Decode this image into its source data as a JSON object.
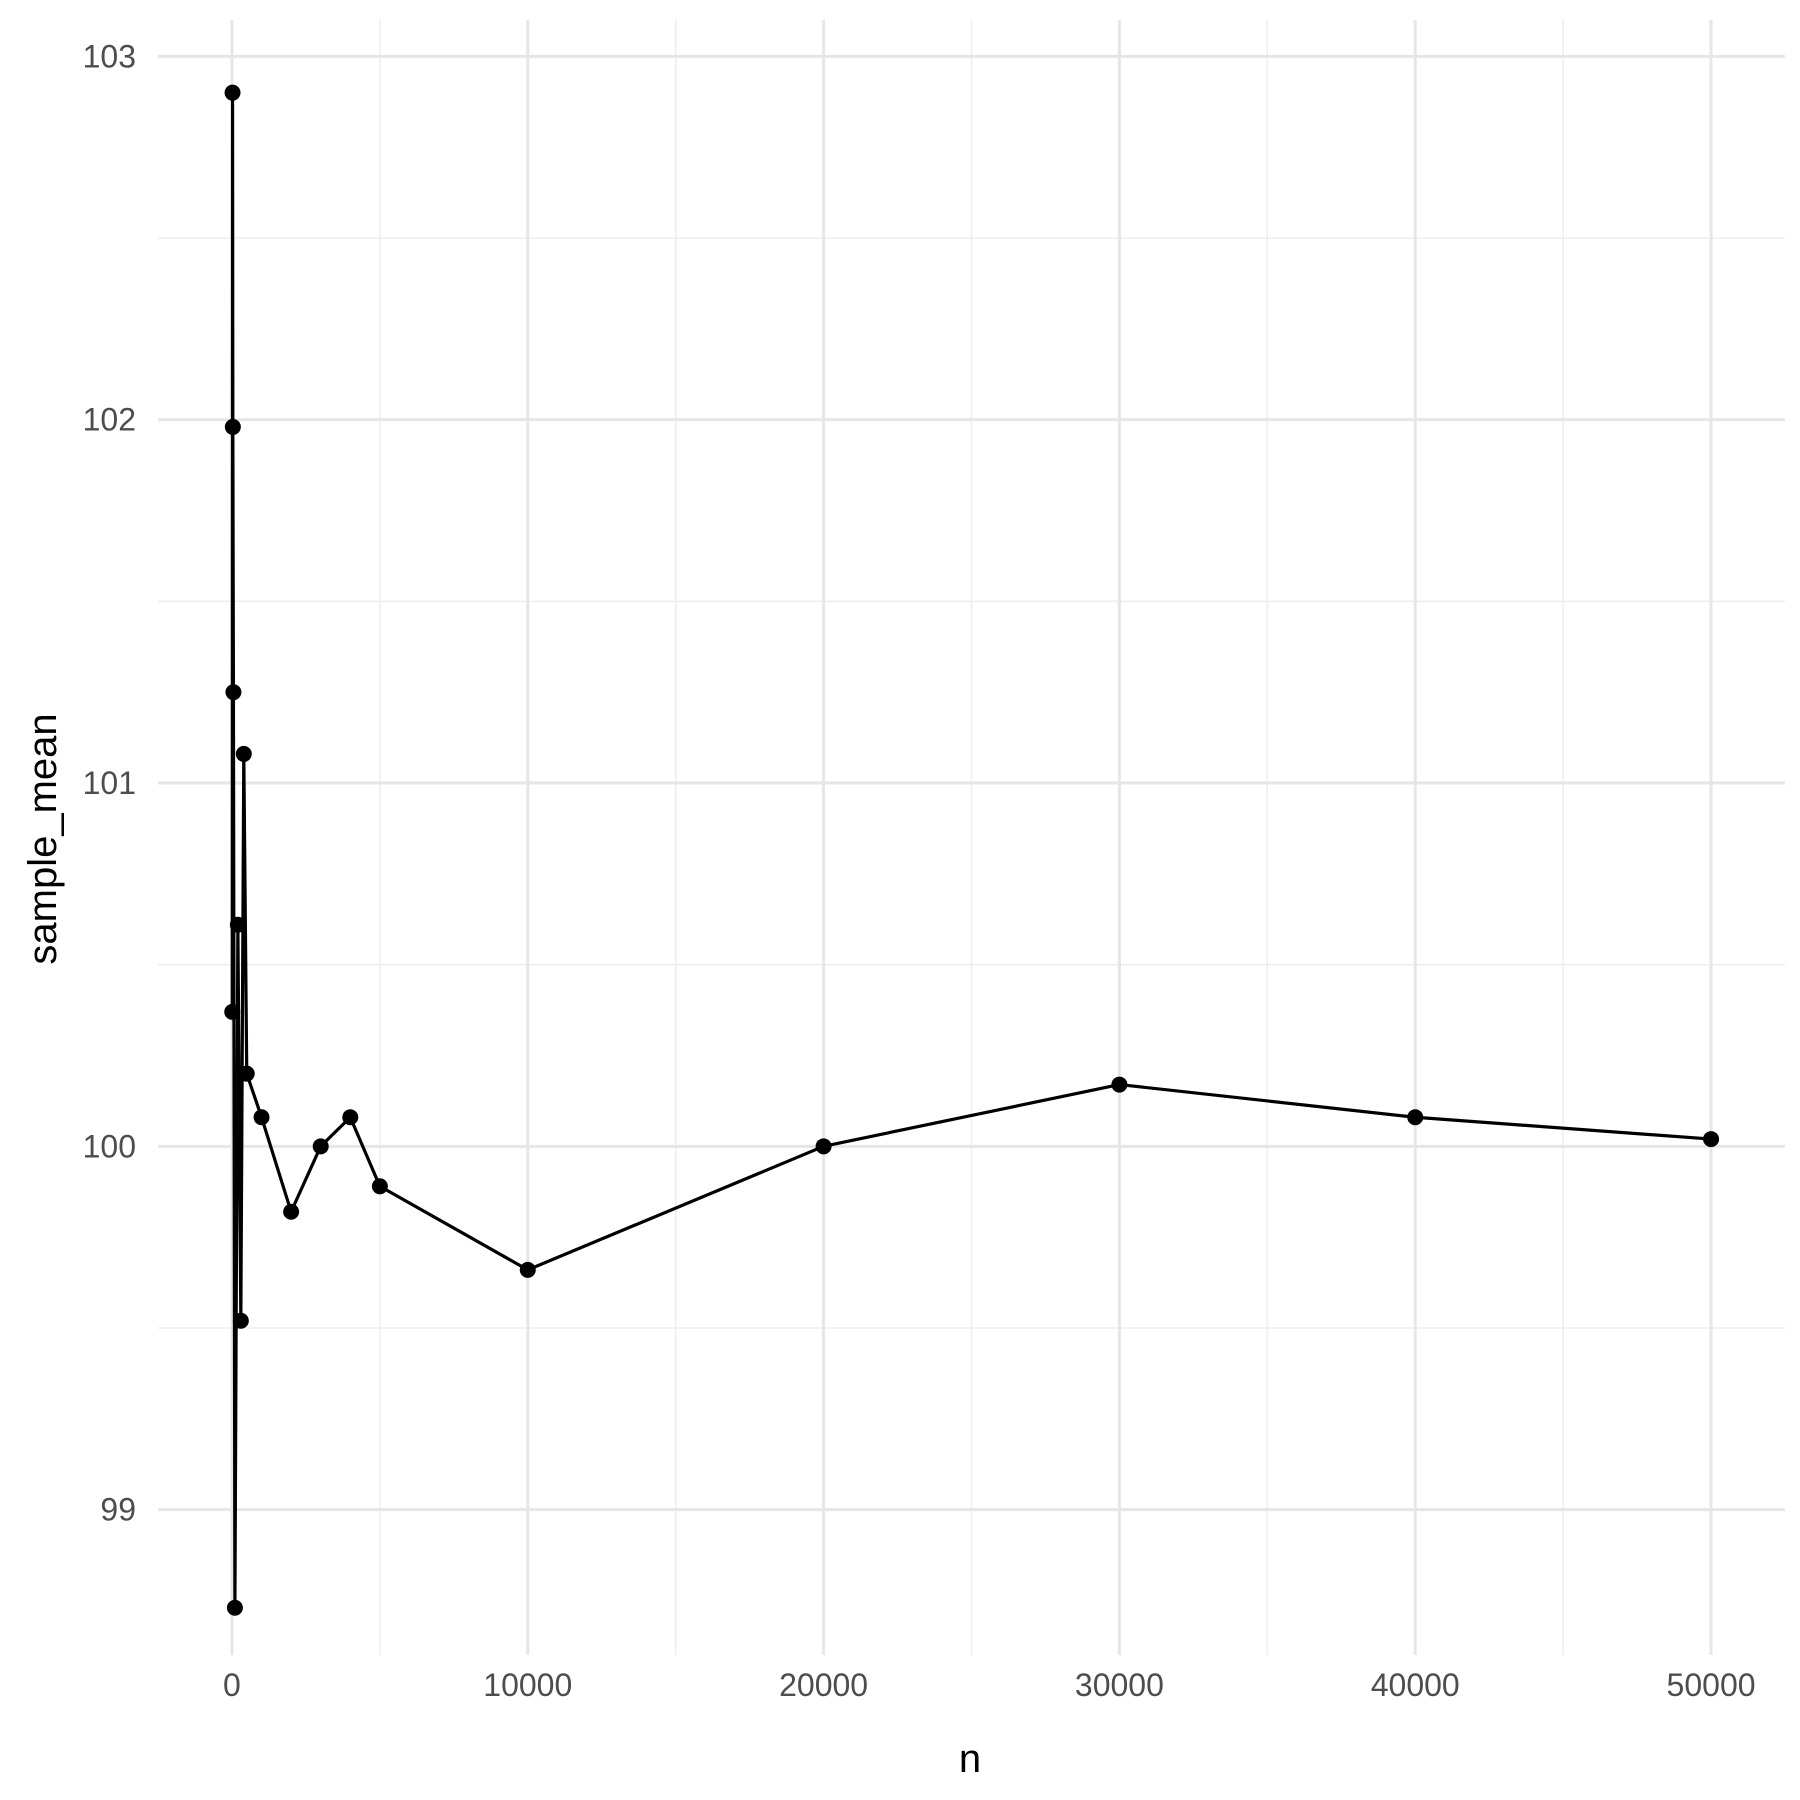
{
  "chart_data": {
    "type": "line",
    "title": "",
    "xlabel": "n",
    "ylabel": "sample_mean",
    "xlim": [
      -2500,
      52500
    ],
    "ylim": [
      98.6,
      103.1
    ],
    "xticks": [
      0,
      10000,
      20000,
      30000,
      40000,
      50000
    ],
    "xtick_labels": [
      "0",
      "10000",
      "20000",
      "30000",
      "40000",
      "50000"
    ],
    "yticks": [
      99,
      100,
      101,
      102,
      103
    ],
    "ytick_labels": [
      "99",
      "100",
      "101",
      "102",
      "103"
    ],
    "grid": true,
    "legend": "none",
    "line_color": "#000000",
    "x": [
      10,
      20,
      30,
      50,
      100,
      200,
      300,
      400,
      500,
      1000,
      2000,
      3000,
      4000,
      5000,
      10000,
      20000,
      30000,
      40000,
      50000
    ],
    "y": [
      100.37,
      102.9,
      101.98,
      101.25,
      98.73,
      100.61,
      99.52,
      101.08,
      100.2,
      100.08,
      99.82,
      100.0,
      100.08,
      99.89,
      99.66,
      100.0,
      100.17,
      100.08,
      100.02
    ]
  }
}
